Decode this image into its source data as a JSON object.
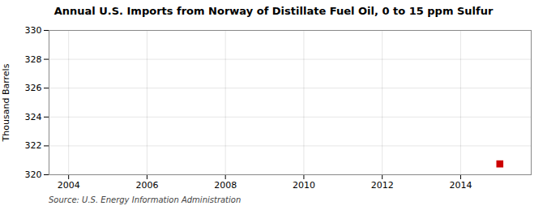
{
  "chart_data": {
    "type": "scatter",
    "title": "Annual U.S. Imports from Norway of Distillate Fuel Oil, 0 to 15 ppm Sulfur",
    "ylabel": "Thousand Barrels",
    "source": "Source: U.S. Energy Information Administration",
    "x": [
      2015
    ],
    "values": [
      320.75
    ],
    "color": "#cc0000",
    "marker": "square",
    "xlim": [
      2003.5,
      2015.8
    ],
    "ylim": [
      320,
      330
    ],
    "xticks": [
      2004,
      2006,
      2008,
      2010,
      2012,
      2014
    ],
    "yticks": [
      320,
      322,
      324,
      326,
      328,
      330
    ],
    "grid": true
  }
}
